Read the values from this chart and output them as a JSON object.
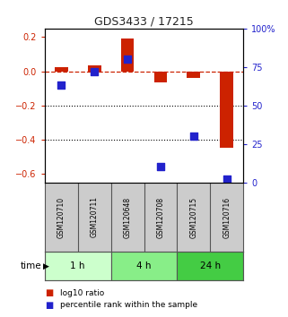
{
  "title": "GDS3433 / 17215",
  "samples": [
    "GSM120710",
    "GSM120711",
    "GSM120648",
    "GSM120708",
    "GSM120715",
    "GSM120716"
  ],
  "log10_ratio": [
    0.025,
    0.035,
    0.19,
    -0.065,
    -0.04,
    -0.45
  ],
  "percentile_rank": [
    63,
    72,
    80,
    10,
    30,
    2
  ],
  "groups": [
    {
      "label": "1 h",
      "indices": [
        0,
        1
      ],
      "color": "#ccffcc"
    },
    {
      "label": "4 h",
      "indices": [
        2,
        3
      ],
      "color": "#88ee88"
    },
    {
      "label": "24 h",
      "indices": [
        4,
        5
      ],
      "color": "#44cc44"
    }
  ],
  "ylim_left": [
    -0.65,
    0.25
  ],
  "ylim_right": [
    0,
    100
  ],
  "bar_color": "#cc2200",
  "dot_color": "#2222cc",
  "dashed_line_color": "#cc2200",
  "title_color": "#222222",
  "left_tick_color": "#cc2200",
  "right_tick_color": "#2222cc",
  "bar_width": 0.4,
  "dot_size": 30,
  "sample_box_color": "#cccccc",
  "sample_box_border": "#555555"
}
